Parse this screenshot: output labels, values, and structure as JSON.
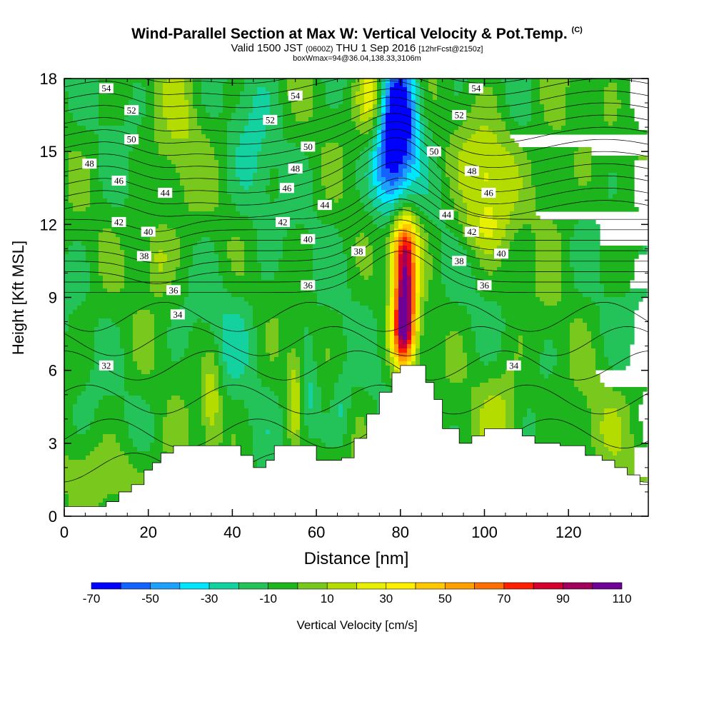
{
  "header": {
    "title": "Wind-Parallel Section at Max W: Vertical Velocity & Pot.Temp.",
    "title_mark": "(C)",
    "valid_prefix": "Valid 1500 JST",
    "valid_utc": "(0600Z)",
    "valid_date": "THU 1 Sep 2016",
    "forecast_tag": "[12hrFcst@2150z]",
    "box_info": "boxWmax=94@36.04,138.33,3106m"
  },
  "chart_data": {
    "type": "heatmap",
    "xlabel": "Distance [nm]",
    "ylabel": "Height [Kft MSL]",
    "xlim": [
      0,
      139
    ],
    "ylim": [
      0,
      18
    ],
    "x_ticks": [
      "0",
      "20",
      "40",
      "60",
      "80",
      "100",
      "120"
    ],
    "y_ticks": [
      "0",
      "3",
      "6",
      "9",
      "12",
      "15",
      "18"
    ],
    "colorbar": {
      "label": "Vertical Velocity [cm/s]",
      "tick_labels": [
        "-70",
        "-50",
        "-30",
        "-10",
        "10",
        "30",
        "50",
        "70",
        "90",
        "110"
      ],
      "levels": [
        -70,
        -60,
        -50,
        -40,
        -30,
        -20,
        -10,
        0,
        10,
        20,
        30,
        40,
        50,
        60,
        70,
        80,
        90,
        100,
        110
      ],
      "colors": [
        "#0000ff",
        "#1462ff",
        "#1ea0ff",
        "#00e6ff",
        "#14d2a0",
        "#23c35a",
        "#1eb41e",
        "#78c81e",
        "#b4dc00",
        "#e6f000",
        "#fff000",
        "#ffc800",
        "#ffa000",
        "#ff6e00",
        "#ff1e00",
        "#d2002d",
        "#a0005a",
        "#6e0096"
      ]
    },
    "wmax_cm_s": 94,
    "wmax_height_m": 3106,
    "terrain_top_kft": [
      [
        0,
        0.4
      ],
      [
        10,
        0.6
      ],
      [
        13,
        1.0
      ],
      [
        16,
        1.3
      ],
      [
        19,
        1.9
      ],
      [
        21,
        2.2
      ],
      [
        23,
        2.6
      ],
      [
        26,
        2.9
      ],
      [
        39,
        2.9
      ],
      [
        42,
        2.5
      ],
      [
        45,
        2.0
      ],
      [
        48,
        2.3
      ],
      [
        50,
        2.9
      ],
      [
        58,
        2.9
      ],
      [
        60,
        2.3
      ],
      [
        66,
        2.4
      ],
      [
        69,
        3.2
      ],
      [
        72,
        4.2
      ],
      [
        75,
        5.1
      ],
      [
        78,
        5.9
      ],
      [
        80,
        6.2
      ],
      [
        84,
        6.2
      ],
      [
        86,
        5.5
      ],
      [
        88,
        4.8
      ],
      [
        90,
        3.6
      ],
      [
        94,
        3.0
      ],
      [
        97,
        3.3
      ],
      [
        100,
        3.6
      ],
      [
        105,
        3.6
      ],
      [
        109,
        3.3
      ],
      [
        112,
        3.0
      ],
      [
        118,
        2.9
      ],
      [
        124,
        2.5
      ],
      [
        128,
        2.3
      ],
      [
        131,
        2.0
      ],
      [
        134,
        1.7
      ],
      [
        137,
        1.3
      ],
      [
        139,
        1.3
      ]
    ],
    "theta_contour_labels": [
      {
        "value": "54",
        "x": 10,
        "y": 17.6
      },
      {
        "value": "54",
        "x": 55,
        "y": 17.3
      },
      {
        "value": "54",
        "x": 98,
        "y": 17.6
      },
      {
        "value": "52",
        "x": 16,
        "y": 16.7
      },
      {
        "value": "52",
        "x": 49,
        "y": 16.3
      },
      {
        "value": "52",
        "x": 94,
        "y": 16.5
      },
      {
        "value": "50",
        "x": 16,
        "y": 15.5
      },
      {
        "value": "50",
        "x": 58,
        "y": 15.2
      },
      {
        "value": "50",
        "x": 88,
        "y": 15.0
      },
      {
        "value": "48",
        "x": 6,
        "y": 14.5
      },
      {
        "value": "48",
        "x": 55,
        "y": 14.3
      },
      {
        "value": "48",
        "x": 97,
        "y": 14.2
      },
      {
        "value": "46",
        "x": 13,
        "y": 13.8
      },
      {
        "value": "46",
        "x": 53,
        "y": 13.5
      },
      {
        "value": "46",
        "x": 101,
        "y": 13.3
      },
      {
        "value": "44",
        "x": 24,
        "y": 13.3
      },
      {
        "value": "44",
        "x": 62,
        "y": 12.8
      },
      {
        "value": "44",
        "x": 91,
        "y": 12.4
      },
      {
        "value": "42",
        "x": 13,
        "y": 12.1
      },
      {
        "value": "42",
        "x": 52,
        "y": 12.1
      },
      {
        "value": "42",
        "x": 97,
        "y": 11.7
      },
      {
        "value": "40",
        "x": 20,
        "y": 11.7
      },
      {
        "value": "40",
        "x": 58,
        "y": 11.4
      },
      {
        "value": "40",
        "x": 104,
        "y": 10.8
      },
      {
        "value": "38",
        "x": 19,
        "y": 10.7
      },
      {
        "value": "38",
        "x": 70,
        "y": 10.9
      },
      {
        "value": "38",
        "x": 94,
        "y": 10.5
      },
      {
        "value": "36",
        "x": 26,
        "y": 9.3
      },
      {
        "value": "36",
        "x": 58,
        "y": 9.5
      },
      {
        "value": "36",
        "x": 100,
        "y": 9.5
      },
      {
        "value": "34",
        "x": 27,
        "y": 8.3
      },
      {
        "value": "34",
        "x": 107,
        "y": 6.2
      },
      {
        "value": "32",
        "x": 10,
        "y": 6.2
      }
    ]
  }
}
